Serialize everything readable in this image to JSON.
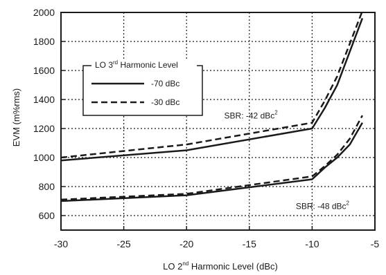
{
  "chart_data": {
    "type": "line",
    "xlabel": {
      "prefix": "LO 2",
      "sup": "nd",
      "suffix": " Harmonic Level (dBc)"
    },
    "ylabel": "EVM (m%rms)",
    "xlim": [
      -30,
      -5
    ],
    "ylim": [
      500,
      2000
    ],
    "xticks": [
      -30,
      -25,
      -20,
      -15,
      -10,
      -5
    ],
    "yticks": [
      600,
      800,
      1000,
      1200,
      1400,
      1600,
      1800,
      2000
    ],
    "xtick_labels": [
      "-30",
      "-25",
      "-20",
      "-15",
      "-10",
      "-5"
    ],
    "ytick_labels": [
      "600",
      "800",
      "1000",
      "1200",
      "1400",
      "1600",
      "1800",
      "2000"
    ],
    "grid": true,
    "legend": {
      "title": {
        "prefix": "LO 3",
        "sup": "rd",
        "suffix": " Harmonic Level"
      },
      "entries": [
        {
          "label": "-70 dBc",
          "style": "solid"
        },
        {
          "label": "-30 dBc",
          "style": "dashed"
        }
      ],
      "placement": "upper-left"
    },
    "annotations": [
      {
        "prefix": "SBR: -42 dBc",
        "sup": "2",
        "x": -17,
        "y": 1268
      },
      {
        "prefix": "SBR: -48 dBc",
        "sup": "2",
        "x": -11.3,
        "y": 645
      }
    ],
    "series": [
      {
        "group": "SBR -42 dBc",
        "style": "solid",
        "x": [
          -30,
          -20,
          -10,
          -9,
          -8,
          -6
        ],
        "y": [
          980,
          1050,
          1200,
          1340,
          1500,
          1960
        ]
      },
      {
        "group": "SBR -42 dBc",
        "style": "dashed",
        "x": [
          -30,
          -20,
          -10,
          -9,
          -8,
          -6
        ],
        "y": [
          1000,
          1090,
          1240,
          1390,
          1560,
          2010
        ]
      },
      {
        "group": "SBR -48 dBc",
        "style": "solid",
        "x": [
          -30,
          -20,
          -10,
          -9,
          -8,
          -7,
          -6
        ],
        "y": [
          700,
          740,
          850,
          930,
          1000,
          1090,
          1240
        ]
      },
      {
        "group": "SBR -48 dBc",
        "style": "dashed",
        "x": [
          -30,
          -20,
          -10,
          -9,
          -8,
          -7,
          -6
        ],
        "y": [
          710,
          750,
          870,
          940,
          1020,
          1130,
          1290
        ]
      }
    ]
  }
}
